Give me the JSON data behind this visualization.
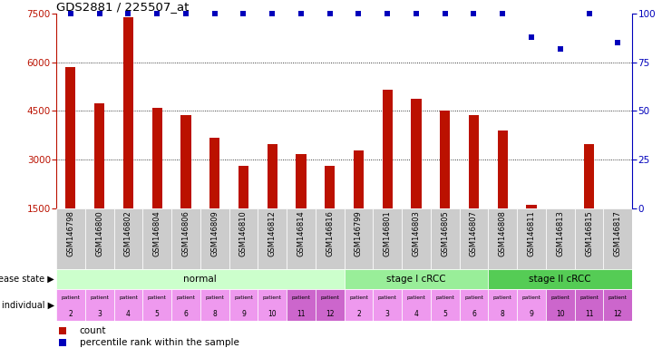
{
  "title": "GDS2881 / 225507_at",
  "samples": [
    "GSM146798",
    "GSM146800",
    "GSM146802",
    "GSM146804",
    "GSM146806",
    "GSM146809",
    "GSM146810",
    "GSM146812",
    "GSM146814",
    "GSM146816",
    "GSM146799",
    "GSM146801",
    "GSM146803",
    "GSM146805",
    "GSM146807",
    "GSM146808",
    "GSM146811",
    "GSM146813",
    "GSM146815",
    "GSM146817"
  ],
  "counts": [
    5850,
    4750,
    7380,
    4600,
    4380,
    3680,
    2820,
    3480,
    3180,
    2820,
    3300,
    5150,
    4870,
    4520,
    4380,
    3900,
    1620,
    1500,
    3480,
    1500
  ],
  "percentile_ranks": [
    100,
    100,
    100,
    100,
    100,
    100,
    100,
    100,
    100,
    100,
    100,
    100,
    100,
    100,
    100,
    100,
    88,
    82,
    100,
    85
  ],
  "ylim_min": 1500,
  "ylim_max": 7500,
  "yticks": [
    1500,
    3000,
    4500,
    6000,
    7500
  ],
  "right_yticks": [
    0,
    25,
    50,
    75,
    100
  ],
  "disease_state_groups": [
    {
      "label": "normal",
      "start": 0,
      "end": 10,
      "color": "#ccffcc"
    },
    {
      "label": "stage I cRCC",
      "start": 10,
      "end": 15,
      "color": "#99ee99"
    },
    {
      "label": "stage II cRCC",
      "start": 15,
      "end": 20,
      "color": "#55cc55"
    }
  ],
  "individuals": [
    "2",
    "3",
    "4",
    "5",
    "6",
    "8",
    "9",
    "10",
    "11",
    "12",
    "2",
    "3",
    "4",
    "5",
    "6",
    "8",
    "9",
    "10",
    "11",
    "12"
  ],
  "ind_colors_light": "#ee99ee",
  "ind_colors_dark": "#cc66cc",
  "ind_dark_indices": [
    8,
    9,
    17,
    18,
    19
  ],
  "bar_color": "#bb1100",
  "dot_color": "#0000bb",
  "bg_color": "#ffffff",
  "tick_bg_color": "#cccccc",
  "grid_color": "#333333",
  "grid_levels": [
    3000,
    4500,
    6000
  ]
}
